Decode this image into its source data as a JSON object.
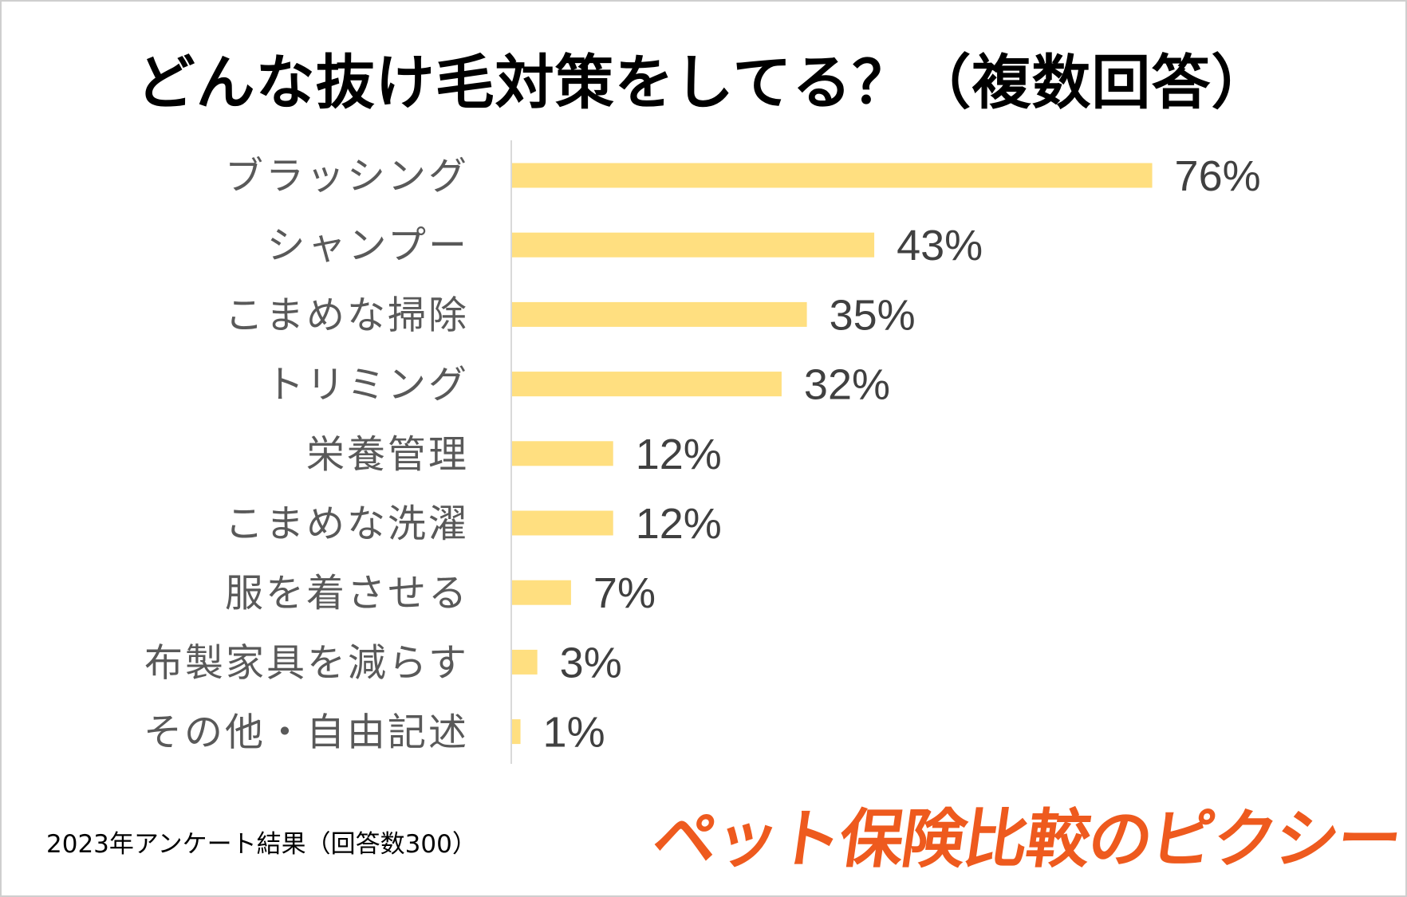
{
  "chart_data": {
    "type": "bar",
    "orientation": "horizontal",
    "title": "どんな抜け毛対策をしてる？（複数回答）",
    "categories": [
      "ブラッシング",
      "シャンプー",
      "こまめな掃除",
      "トリミング",
      "栄養管理",
      "こまめな洗濯",
      "服を着させる",
      "布製家具を減らす",
      "その他・自由記述"
    ],
    "values": [
      76,
      43,
      35,
      32,
      12,
      12,
      7,
      3,
      1
    ],
    "value_labels": [
      "76%",
      "43%",
      "35%",
      "32%",
      "12%",
      "12%",
      "7%",
      "3%",
      "1%"
    ],
    "unit": "%",
    "xlim": [
      0,
      100
    ],
    "grid": false,
    "legend": "none",
    "bar_color": "#ffdf80",
    "label_color": "#595959",
    "value_color": "#404040",
    "axis_color": "#d9d9d9"
  },
  "footnote": "2023年アンケート結果（回答数300）",
  "brand": {
    "text": "ペット保険比較のピクシー",
    "color": "#ee5a1e"
  }
}
